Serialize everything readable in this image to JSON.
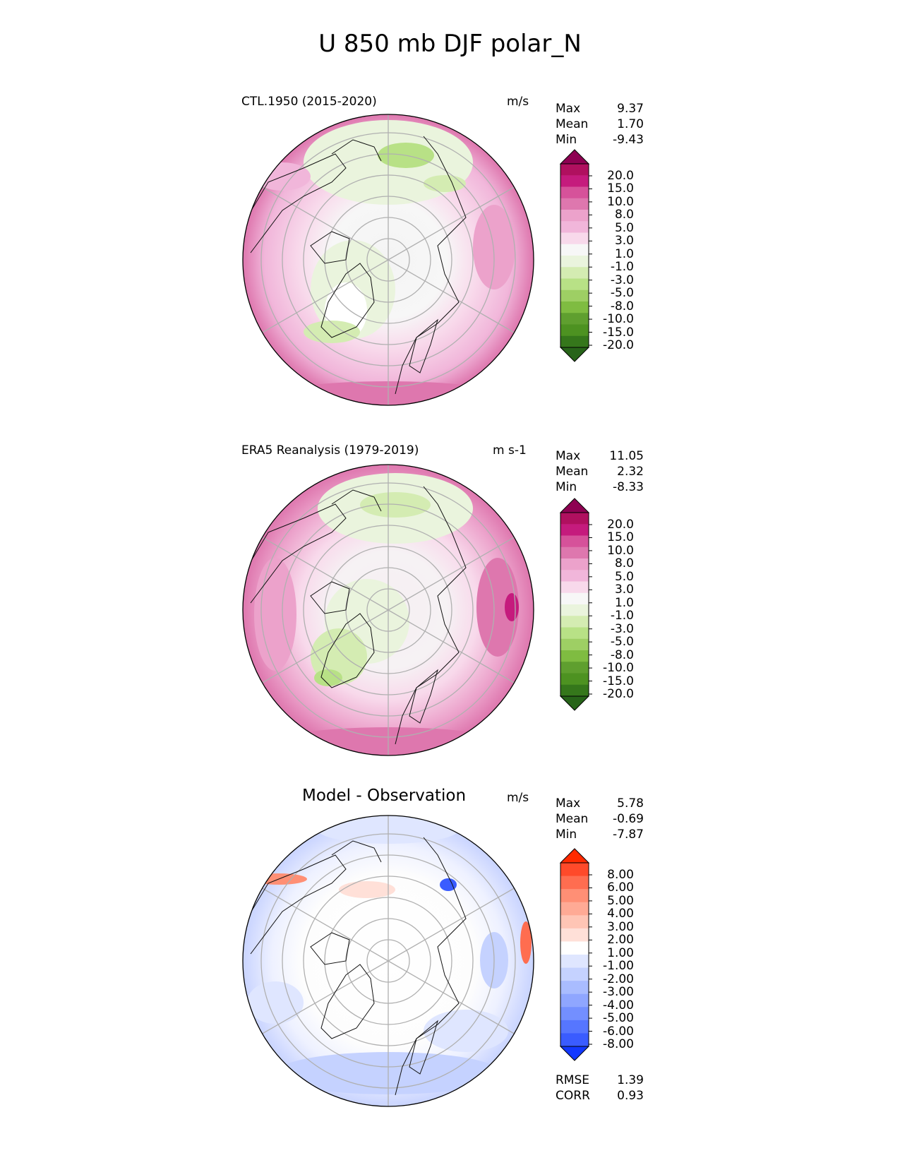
{
  "title": "U 850 mb DJF polar_N",
  "panels": [
    {
      "id": "test",
      "label": "CTL.1950 (2015-2020)",
      "units": "m/s",
      "stats": [
        {
          "label": "Max",
          "value": "9.37"
        },
        {
          "label": "Mean",
          "value": "1.70"
        },
        {
          "label": "Min",
          "value": "-9.43"
        }
      ],
      "colorbar": {
        "ticks": [
          "20.0",
          "15.0",
          "10.0",
          "8.0",
          "5.0",
          "3.0",
          "1.0",
          "-1.0",
          "-3.0",
          "-5.0",
          "-8.0",
          "-10.0",
          "-15.0",
          "-20.0"
        ],
        "colors": [
          "#8e0152",
          "#b0105f",
          "#c51b7d",
          "#d6529a",
          "#de77ae",
          "#eca2cb",
          "#f1b6da",
          "#f8d9eb",
          "#f7f7f7",
          "#eaf4dd",
          "#d4ecb2",
          "#b8e186",
          "#9ecf64",
          "#7fbc41",
          "#5f9f2f",
          "#4d9221",
          "#35771b",
          "#276419"
        ]
      }
    },
    {
      "id": "reference",
      "label": "ERA5 Reanalysis (1979-2019)",
      "units": "m s-1",
      "stats": [
        {
          "label": "Max",
          "value": "11.05"
        },
        {
          "label": "Mean",
          "value": "2.32"
        },
        {
          "label": "Min",
          "value": "-8.33"
        }
      ],
      "colorbar": {
        "ticks": [
          "20.0",
          "15.0",
          "10.0",
          "8.0",
          "5.0",
          "3.0",
          "1.0",
          "-1.0",
          "-3.0",
          "-5.0",
          "-8.0",
          "-10.0",
          "-15.0",
          "-20.0"
        ],
        "colors": [
          "#8e0152",
          "#b0105f",
          "#c51b7d",
          "#d6529a",
          "#de77ae",
          "#eca2cb",
          "#f1b6da",
          "#f8d9eb",
          "#f7f7f7",
          "#eaf4dd",
          "#d4ecb2",
          "#b8e186",
          "#9ecf64",
          "#7fbc41",
          "#5f9f2f",
          "#4d9221",
          "#35771b",
          "#276419"
        ]
      }
    },
    {
      "id": "difference",
      "label": "Model - Observation",
      "units": "m/s",
      "stats": [
        {
          "label": "Max",
          "value": "5.78"
        },
        {
          "label": "Mean",
          "value": "-0.69"
        },
        {
          "label": "Min",
          "value": "-7.87"
        }
      ],
      "extra_stats": [
        {
          "label": "RMSE",
          "value": "1.39"
        },
        {
          "label": "CORR",
          "value": "0.93"
        }
      ],
      "colorbar": {
        "ticks": [
          "8.00",
          "6.00",
          "5.00",
          "4.00",
          "3.00",
          "2.00",
          "1.00",
          "-1.00",
          "-2.00",
          "-3.00",
          "-4.00",
          "-5.00",
          "-6.00",
          "-8.00"
        ],
        "colors": [
          "#ff2a00",
          "#ff4a2a",
          "#ff6d50",
          "#ff8f75",
          "#ffaa95",
          "#ffc5b5",
          "#ffe0d8",
          "#ffffff",
          "#dfe6ff",
          "#c5d2ff",
          "#a9bcff",
          "#8fa6ff",
          "#738fff",
          "#5676ff",
          "#3a5cff",
          "#1238ff"
        ]
      }
    }
  ],
  "chart_data": [
    {
      "type": "heatmap",
      "title": "CTL.1950 (2015-2020)",
      "projection": "north polar stereographic",
      "variable": "U 850 mb DJF",
      "units": "m/s",
      "max": 9.37,
      "mean": 1.7,
      "min": -9.43,
      "levels": [
        -20,
        -15,
        -10,
        -8,
        -5,
        -3,
        -1,
        1,
        3,
        5,
        8,
        10,
        15,
        20
      ]
    },
    {
      "type": "heatmap",
      "title": "ERA5 Reanalysis (1979-2019)",
      "projection": "north polar stereographic",
      "variable": "U 850 mb DJF",
      "units": "m s-1",
      "max": 11.05,
      "mean": 2.32,
      "min": -8.33,
      "levels": [
        -20,
        -15,
        -10,
        -8,
        -5,
        -3,
        -1,
        1,
        3,
        5,
        8,
        10,
        15,
        20
      ]
    },
    {
      "type": "heatmap",
      "title": "Model - Observation",
      "projection": "north polar stereographic",
      "units": "m/s",
      "max": 5.78,
      "mean": -0.69,
      "min": -7.87,
      "rmse": 1.39,
      "corr": 0.93,
      "levels": [
        -8,
        -6,
        -5,
        -4,
        -3,
        -2,
        -1,
        1,
        2,
        3,
        4,
        5,
        6,
        8
      ]
    }
  ]
}
